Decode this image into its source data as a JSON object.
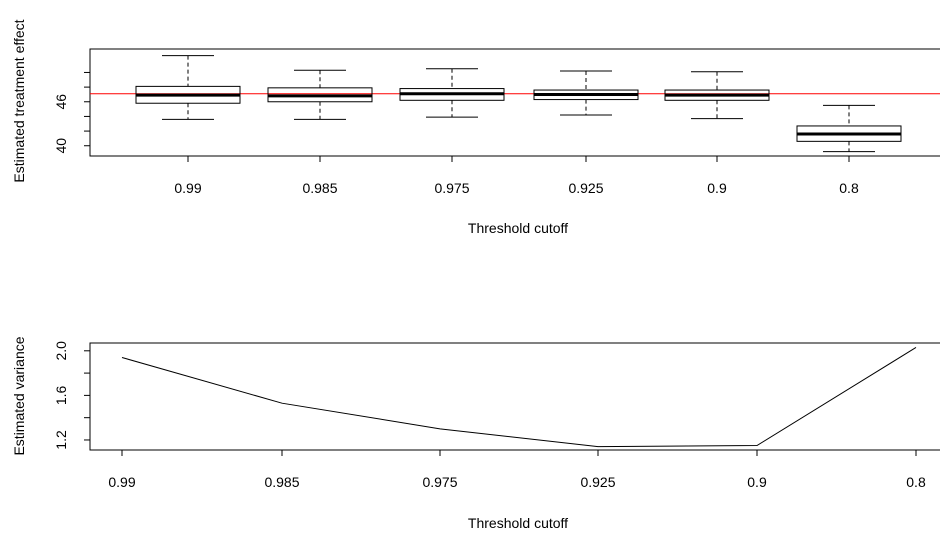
{
  "chart_data": [
    {
      "type": "boxplot",
      "xlabel": "Threshold cutoff",
      "ylabel": "Estimated treatment effect",
      "categories": [
        "0.99",
        "0.985",
        "0.975",
        "0.925",
        "0.9",
        "0.8"
      ],
      "yticks": [
        40,
        46
      ],
      "ylim": [
        38.6,
        53.2
      ],
      "reference_line": {
        "y": 47.1,
        "color": "#ff0000"
      },
      "boxes": [
        {
          "whisker_low": 43.6,
          "q1": 45.8,
          "median": 46.9,
          "q3": 48.1,
          "whisker_high": 52.3
        },
        {
          "whisker_low": 43.6,
          "q1": 46.0,
          "median": 46.8,
          "q3": 47.9,
          "whisker_high": 50.3
        },
        {
          "whisker_low": 43.9,
          "q1": 46.2,
          "median": 47.1,
          "q3": 47.8,
          "whisker_high": 50.5
        },
        {
          "whisker_low": 44.2,
          "q1": 46.3,
          "median": 47.0,
          "q3": 47.6,
          "whisker_high": 50.2
        },
        {
          "whisker_low": 43.7,
          "q1": 46.2,
          "median": 46.9,
          "q3": 47.6,
          "whisker_high": 50.1
        },
        {
          "whisker_low": 39.2,
          "q1": 40.6,
          "median": 41.6,
          "q3": 42.7,
          "whisker_high": 45.5
        }
      ],
      "outlier_ticks": {
        "note": "short horizontal tick marks drawn on the left y-axis",
        "values": [
          42,
          44,
          48,
          50
        ]
      },
      "grid": false
    },
    {
      "type": "line",
      "xlabel": "Threshold cutoff",
      "ylabel": "Estimated variance",
      "categories": [
        "0.99",
        "0.985",
        "0.975",
        "0.925",
        "0.9",
        "0.8"
      ],
      "values": [
        1.94,
        1.53,
        1.3,
        1.14,
        1.15,
        2.03
      ],
      "yticks": [
        1.2,
        1.6,
        2.0
      ],
      "minor_yticks": [
        1.4,
        1.8
      ],
      "ylim": [
        1.11,
        2.07
      ],
      "grid": false
    }
  ]
}
